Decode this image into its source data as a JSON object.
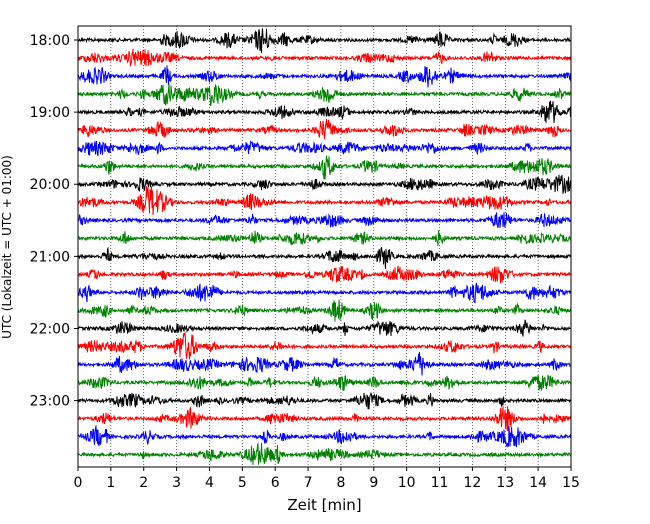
{
  "chart_data": {
    "type": "line",
    "title": "",
    "xlabel": "Zeit  [min]",
    "ylabel": "UTC (Lokalzeit = UTC + 01:00)",
    "xlim": [
      0,
      15
    ],
    "x_ticks": [
      "0",
      "1",
      "2",
      "3",
      "4",
      "5",
      "6",
      "7",
      "8",
      "9",
      "10",
      "11",
      "12",
      "13",
      "14",
      "15"
    ],
    "y_ticks": [
      "18:00",
      "19:00",
      "20:00",
      "21:00",
      "22:00",
      "23:00"
    ],
    "grid": "vertical dotted",
    "trace_start_times": [
      "18:00",
      "18:15",
      "18:30",
      "18:45",
      "19:00",
      "19:15",
      "19:30",
      "19:45",
      "20:00",
      "20:15",
      "20:30",
      "20:45",
      "21:00",
      "21:15",
      "21:30",
      "21:45",
      "22:00",
      "22:15",
      "22:30",
      "22:45",
      "23:00",
      "23:15",
      "23:30",
      "23:45"
    ],
    "trace_colors": [
      "#000000",
      "#ff0000",
      "#0000ff",
      "#008000"
    ]
  }
}
